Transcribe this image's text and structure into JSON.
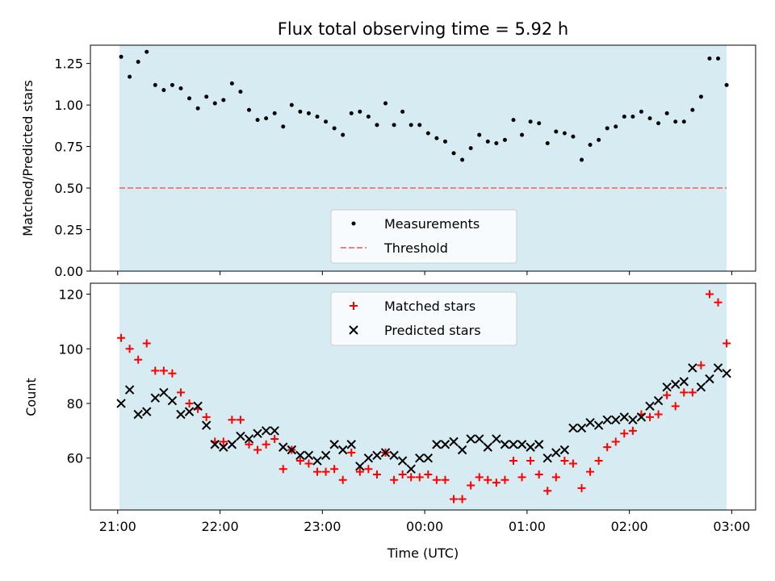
{
  "chart_data": [
    {
      "type": "scatter",
      "title": "Flux total observing time = 5.92 h",
      "xlabel": "",
      "ylabel": "Matched/Predicted stars",
      "ylim": [
        0,
        1.36
      ],
      "yticks": [
        "0.00",
        "0.25",
        "0.50",
        "0.75",
        "1.00",
        "1.25"
      ],
      "ytick_values": [
        0,
        0.25,
        0.5,
        0.75,
        1.0,
        1.25
      ],
      "observing_span": [
        "21:01",
        "02:57"
      ],
      "threshold": 0.5,
      "legend": {
        "position": "lower center",
        "items": [
          "Measurements",
          "Threshold"
        ]
      },
      "series": [
        {
          "name": "Measurements",
          "color": "#000000",
          "marker": "dot",
          "x": [
            "21:02",
            "21:07",
            "21:12",
            "21:17",
            "21:22",
            "21:27",
            "21:32",
            "21:37",
            "21:42",
            "21:47",
            "21:52",
            "21:57",
            "22:02",
            "22:07",
            "22:12",
            "22:17",
            "22:22",
            "22:27",
            "22:32",
            "22:37",
            "22:42",
            "22:47",
            "22:52",
            "22:57",
            "23:02",
            "23:07",
            "23:12",
            "23:17",
            "23:22",
            "23:27",
            "23:32",
            "23:37",
            "23:42",
            "23:47",
            "23:52",
            "23:57",
            "00:02",
            "00:07",
            "00:12",
            "00:17",
            "00:22",
            "00:27",
            "00:32",
            "00:37",
            "00:42",
            "00:47",
            "00:52",
            "00:57",
            "01:02",
            "01:07",
            "01:12",
            "01:17",
            "01:22",
            "01:27",
            "01:32",
            "01:37",
            "01:42",
            "01:47",
            "01:52",
            "01:57",
            "02:02",
            "02:07",
            "02:12",
            "02:17",
            "02:22",
            "02:27",
            "02:32",
            "02:37",
            "02:42",
            "02:47",
            "02:52",
            "02:57"
          ],
          "y": [
            1.29,
            1.17,
            1.26,
            1.32,
            1.12,
            1.09,
            1.12,
            1.1,
            1.04,
            0.98,
            1.05,
            1.01,
            1.03,
            1.13,
            1.08,
            0.97,
            0.91,
            0.92,
            0.95,
            0.87,
            1.0,
            0.96,
            0.95,
            0.93,
            0.9,
            0.86,
            0.82,
            0.95,
            0.96,
            0.93,
            0.88,
            1.01,
            0.88,
            0.96,
            0.88,
            0.88,
            0.83,
            0.8,
            0.78,
            0.71,
            0.67,
            0.74,
            0.82,
            0.78,
            0.77,
            0.79,
            0.91,
            0.82,
            0.9,
            0.89,
            0.77,
            0.84,
            0.83,
            0.81,
            0.67,
            0.76,
            0.79,
            0.86,
            0.87,
            0.93,
            0.93,
            0.96,
            0.92,
            0.89,
            0.95,
            0.9,
            0.9,
            0.97,
            1.05,
            1.28,
            1.28,
            1.12
          ]
        },
        {
          "name": "Threshold",
          "color": "#f08080",
          "line": "dashed",
          "y": 0.5
        }
      ]
    },
    {
      "type": "scatter",
      "title": "",
      "xlabel": "Time (UTC)",
      "ylabel": "Count",
      "ylim": [
        41,
        124
      ],
      "yticks": [
        "60",
        "80",
        "100",
        "120"
      ],
      "ytick_values": [
        60,
        80,
        100,
        120
      ],
      "xticks": [
        "21:00",
        "22:00",
        "23:00",
        "00:00",
        "01:00",
        "02:00",
        "03:00"
      ],
      "xtick_values": [
        "21:00",
        "22:00",
        "23:00",
        "00:00",
        "01:00",
        "02:00",
        "03:00"
      ],
      "xlim": [
        "20:44",
        "03:14"
      ],
      "legend": {
        "position": "upper center",
        "items": [
          "Matched stars",
          "Predicted stars"
        ]
      },
      "series": [
        {
          "name": "Matched stars",
          "color": "#ff0000",
          "marker": "plus",
          "x": [
            "21:02",
            "21:07",
            "21:12",
            "21:17",
            "21:22",
            "21:27",
            "21:32",
            "21:37",
            "21:42",
            "21:47",
            "21:52",
            "21:57",
            "22:02",
            "22:07",
            "22:12",
            "22:17",
            "22:22",
            "22:27",
            "22:32",
            "22:37",
            "22:42",
            "22:47",
            "22:52",
            "22:57",
            "23:02",
            "23:07",
            "23:12",
            "23:17",
            "23:22",
            "23:27",
            "23:32",
            "23:37",
            "23:42",
            "23:47",
            "23:52",
            "23:57",
            "00:02",
            "00:07",
            "00:12",
            "00:17",
            "00:22",
            "00:27",
            "00:32",
            "00:37",
            "00:42",
            "00:47",
            "00:52",
            "00:57",
            "01:02",
            "01:07",
            "01:12",
            "01:17",
            "01:22",
            "01:27",
            "01:32",
            "01:37",
            "01:42",
            "01:47",
            "01:52",
            "01:57",
            "02:02",
            "02:07",
            "02:12",
            "02:17",
            "02:22",
            "02:27",
            "02:32",
            "02:37",
            "02:42",
            "02:47",
            "02:52",
            "02:57"
          ],
          "y": [
            104,
            100,
            96,
            102,
            92,
            92,
            91,
            84,
            80,
            78,
            75,
            66,
            66,
            74,
            74,
            65,
            63,
            65,
            67,
            56,
            63,
            59,
            58,
            55,
            55,
            56,
            52,
            62,
            55,
            56,
            54,
            62,
            52,
            54,
            53,
            53,
            54,
            52,
            52,
            45,
            45,
            50,
            53,
            52,
            51,
            52,
            59,
            53,
            59,
            54,
            48,
            53,
            59,
            58,
            49,
            55,
            59,
            64,
            66,
            69,
            70,
            76,
            75,
            76,
            83,
            79,
            84,
            84,
            94,
            120,
            117,
            102
          ]
        },
        {
          "name": "Predicted stars",
          "color": "#000000",
          "marker": "x",
          "x": [
            "21:02",
            "21:07",
            "21:12",
            "21:17",
            "21:22",
            "21:27",
            "21:32",
            "21:37",
            "21:42",
            "21:47",
            "21:52",
            "21:57",
            "22:02",
            "22:07",
            "22:12",
            "22:17",
            "22:22",
            "22:27",
            "22:32",
            "22:37",
            "22:42",
            "22:47",
            "22:52",
            "22:57",
            "23:02",
            "23:07",
            "23:12",
            "23:17",
            "23:22",
            "23:27",
            "23:32",
            "23:37",
            "23:42",
            "23:47",
            "23:52",
            "23:57",
            "00:02",
            "00:07",
            "00:12",
            "00:17",
            "00:22",
            "00:27",
            "00:32",
            "00:37",
            "00:42",
            "00:47",
            "00:52",
            "00:57",
            "01:02",
            "01:07",
            "01:12",
            "01:17",
            "01:22",
            "01:27",
            "01:32",
            "01:37",
            "01:42",
            "01:47",
            "01:52",
            "01:57",
            "02:02",
            "02:07",
            "02:12",
            "02:17",
            "02:22",
            "02:27",
            "02:32",
            "02:37",
            "02:42",
            "02:47",
            "02:52",
            "02:57"
          ],
          "y": [
            80,
            85,
            76,
            77,
            82,
            84,
            81,
            76,
            77,
            79,
            72,
            65,
            64,
            65,
            68,
            67,
            69,
            70,
            70,
            64,
            63,
            61,
            61,
            59,
            61,
            65,
            63,
            65,
            57,
            60,
            61,
            62,
            61,
            59,
            56,
            60,
            60,
            65,
            65,
            66,
            63,
            67,
            67,
            64,
            67,
            65,
            65,
            65,
            64,
            65,
            60,
            62,
            63,
            71,
            71,
            73,
            72,
            74,
            74,
            75,
            74,
            75,
            79,
            81,
            86,
            87,
            88,
            93,
            86,
            89,
            93,
            91
          ]
        }
      ]
    }
  ]
}
